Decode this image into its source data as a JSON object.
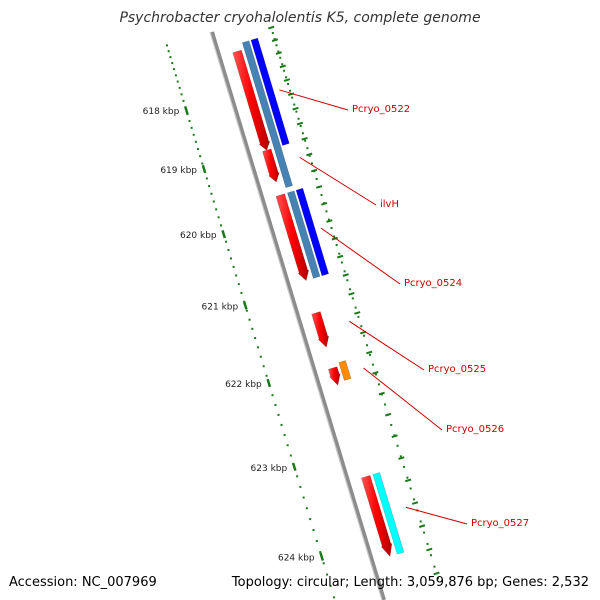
{
  "title": "Psychrobacter cryohalolentis K5, complete genome",
  "footer": {
    "accession": "Accession: NC_007969",
    "summary": "Topology: circular; Length: 3,059,876 bp; Genes: 2,532"
  },
  "scale": {
    "start_kbp": 617,
    "end_kbp": 624,
    "ticks": [
      "618 kbp",
      "619 kbp",
      "620 kbp",
      "621 kbp",
      "622 kbp",
      "623 kbp",
      "624 kbp"
    ]
  },
  "colors": {
    "backbone": "#8c8c8c",
    "tick": "#1a7a1a",
    "cds": "#ff0000",
    "gene_blue": "#0000ff",
    "gene_steel": "#4682b4",
    "gene_cyan": "#00ffff",
    "gene_orange": "#ff8c00",
    "label": "#cc0000"
  },
  "genes": [
    {
      "label": "Pcryo_0522",
      "start": 617.25,
      "end": 619.0,
      "track": "cds",
      "color": "cds"
    },
    {
      "label": "",
      "start": 617.12,
      "end": 619.62,
      "track": "inner",
      "color": "gene_steel"
    },
    {
      "label": "",
      "start": 617.12,
      "end": 619.0,
      "track": "outer",
      "color": "gene_blue"
    },
    {
      "label": "ilvH",
      "start": 619.0,
      "end": 619.5,
      "track": "cds",
      "color": "cds"
    },
    {
      "label": "Pcryo_0524",
      "start": 619.7,
      "end": 620.92,
      "track": "cds",
      "color": "cds"
    },
    {
      "label": "",
      "start": 619.7,
      "end": 620.92,
      "track": "inner",
      "color": "gene_steel"
    },
    {
      "label": "",
      "start": 619.7,
      "end": 620.92,
      "track": "outer",
      "color": "gene_blue"
    },
    {
      "label": "Pcryo_0525",
      "start": 621.35,
      "end": 621.79,
      "track": "cds",
      "color": "cds"
    },
    {
      "label": "Pcryo_0526",
      "start": 622.05,
      "end": 622.26,
      "track": "cds",
      "color": "cds"
    },
    {
      "label": "",
      "start": 622.01,
      "end": 622.23,
      "track": "inner",
      "color": "gene_orange"
    },
    {
      "label": "Pcryo_0527",
      "start": 623.33,
      "end": 624.2,
      "track": "cds",
      "color": "cds"
    },
    {
      "label": "",
      "start": 623.33,
      "end": 624.2,
      "track": "inner",
      "color": "gene_cyan"
    }
  ],
  "gene_label_text": [
    "Pcryo_0522",
    "ilvH",
    "Pcryo_0524",
    "Pcryo_0525",
    "Pcryo_0526",
    "Pcryo_0527"
  ]
}
